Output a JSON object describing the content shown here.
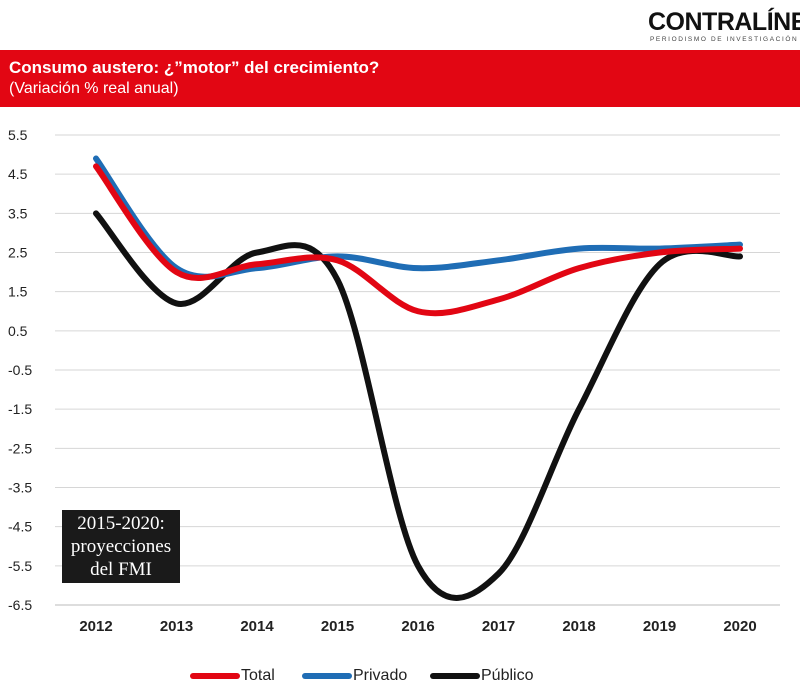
{
  "brand": {
    "logo_name": "CONTRALÍNEA",
    "tagline": "PERIODISMO DE INVESTIGACIÓN"
  },
  "header": {
    "title": "Consumo austero: ¿”motor” del crecimiento?",
    "subtitle": "(Variación % real anual)"
  },
  "note": {
    "line1": "2015-2020:",
    "line2": "proyecciones",
    "line3": "del FMI"
  },
  "colors": {
    "banner": "#e20613",
    "total": "#e20613",
    "privado": "#1f6db5",
    "publico": "#111111"
  },
  "chart_data": {
    "type": "line",
    "title": "Consumo austero: ¿”motor” del crecimiento?",
    "subtitle": "(Variación % real anual)",
    "xlabel": "",
    "ylabel": "",
    "x": [
      "2012",
      "2013",
      "2014",
      "2015",
      "2016",
      "2017",
      "2018",
      "2019",
      "2020"
    ],
    "y_ticks": [
      "5.5",
      "4.5",
      "3.5",
      "2.5",
      "1.5",
      "0.5",
      "-0.5",
      "-1.5",
      "-2.5",
      "-3.5",
      "-4.5",
      "-5.5",
      "-6.5"
    ],
    "ylim": [
      -6.5,
      5.5
    ],
    "grid": true,
    "legend_position": "bottom",
    "series": [
      {
        "name": "Total",
        "values": [
          4.7,
          2.0,
          2.2,
          2.3,
          1.0,
          1.3,
          2.1,
          2.5,
          2.6
        ]
      },
      {
        "name": "Privado",
        "values": [
          4.9,
          2.1,
          2.1,
          2.4,
          2.1,
          2.3,
          2.6,
          2.6,
          2.7
        ]
      },
      {
        "name": "Público",
        "values": [
          3.5,
          1.2,
          2.5,
          1.8,
          -5.5,
          -5.7,
          -1.5,
          2.2,
          2.4
        ]
      }
    ]
  }
}
